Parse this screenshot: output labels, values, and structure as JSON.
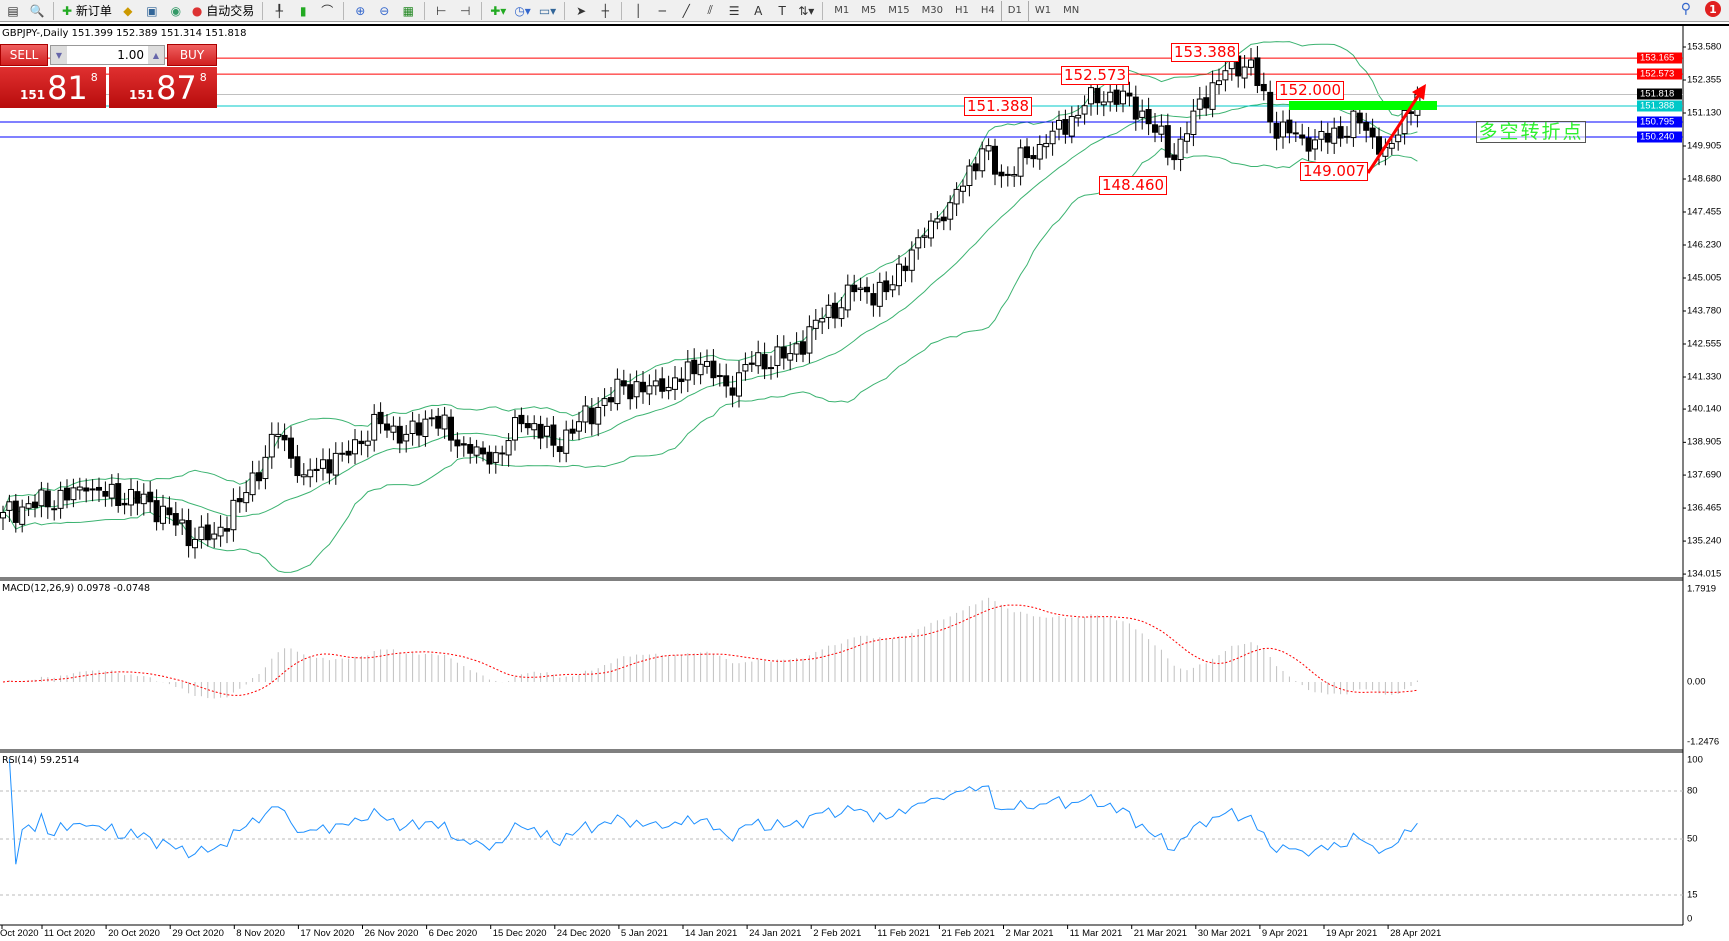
{
  "toolbar": {
    "new_order_label": "新订单",
    "auto_trading_label": "自动交易",
    "icons": [
      "new-chart-icon",
      "profiles-icon",
      "new-order-icon",
      "metaeditor-icon",
      "market-icon",
      "signals-icon",
      "auto-trading-icon",
      "bar-chart-icon",
      "candlestick-icon",
      "line-chart-icon",
      "zoom-in-icon",
      "zoom-out-icon",
      "tile-windows-icon",
      "auto-scroll-icon",
      "chart-shift-icon",
      "indicators-icon",
      "periods-icon",
      "templates-icon",
      "cursor-icon",
      "crosshair-icon",
      "vertical-line-icon",
      "horizontal-line-icon",
      "trendline-icon",
      "equidistant-channel-icon",
      "fibonacci-icon",
      "text-icon",
      "text-label-icon",
      "arrows-icon",
      "search-icon",
      "notifications-icon"
    ],
    "timeframes": [
      "M1",
      "M5",
      "M15",
      "M30",
      "H1",
      "H4",
      "D1",
      "W1",
      "MN"
    ],
    "active_timeframe": "D1",
    "notification_count": "1"
  },
  "chart": {
    "title": "GBPJPY-,Daily  151.399 152.389 151.314 151.818",
    "one_click": {
      "sell_label": "SELL",
      "buy_label": "BUY",
      "lot": "1.00",
      "sell_prefix": "151",
      "sell_big": "81",
      "sell_sup": "8",
      "buy_prefix": "151",
      "buy_big": "87",
      "buy_sup": "8"
    },
    "price_axis_ticks": [
      "153.580",
      "152.355",
      "151.130",
      "149.905",
      "148.680",
      "147.455",
      "146.230",
      "145.005",
      "143.780",
      "142.555",
      "141.330",
      "140.140",
      "138.905",
      "137.690",
      "136.465",
      "135.240",
      "134.015"
    ],
    "hlines": [
      {
        "price": "153.165",
        "color": "#ff0000"
      },
      {
        "price": "152.573",
        "color": "#ff0000"
      },
      {
        "price": "151.818",
        "color": "#000000",
        "line_color": "#c0c0c0"
      },
      {
        "price": "151.388",
        "color": "#00c8c8"
      },
      {
        "price": "150.795",
        "color": "#0000ff"
      },
      {
        "price": "150.240",
        "color": "#0000ff"
      }
    ],
    "price_labels": [
      "153.388",
      "152.573",
      "151.388",
      "152.000",
      "148.460",
      "149.007"
    ],
    "annotation": "多空转折点",
    "green_zone_color": "#00ff00",
    "arrow_color": "#ff0000",
    "band_color": "#3cb371",
    "macd": {
      "label": "MACD(12,26,9) 0.0978 -0.0748",
      "max": "1.7919",
      "zero": "0.00",
      "min": "-1.2476"
    },
    "rsi": {
      "label": "RSI(14) 59.2514",
      "levels": [
        "100",
        "80",
        "50",
        "15",
        "0"
      ],
      "line_color": "#1e90ff"
    },
    "dates": [
      "Oct 2020",
      "11 Oct 2020",
      "20 Oct 2020",
      "29 Oct 2020",
      "8 Nov 2020",
      "17 Nov 2020",
      "26 Nov 2020",
      "6 Dec 2020",
      "15 Dec 2020",
      "24 Dec 2020",
      "5 Jan 2021",
      "14 Jan 2021",
      "24 Jan 2021",
      "2 Feb 2021",
      "11 Feb 2021",
      "21 Feb 2021",
      "2 Mar 2021",
      "11 Mar 2021",
      "21 Mar 2021",
      "30 Mar 2021",
      "9 Apr 2021",
      "19 Apr 2021",
      "28 Apr 2021"
    ]
  },
  "chart_data": {
    "type": "candlestick",
    "symbol": "GBPJPY-",
    "timeframe": "Daily",
    "ylim": [
      134.015,
      153.58
    ],
    "close_keypoints": [
      [
        0,
        136.3
      ],
      [
        13,
        137.1
      ],
      [
        23,
        136.7
      ],
      [
        30,
        135.3
      ],
      [
        33,
        135.5
      ],
      [
        37,
        136.7
      ],
      [
        43,
        139.2
      ],
      [
        47,
        137.7
      ],
      [
        53,
        138.5
      ],
      [
        59,
        139.6
      ],
      [
        63,
        139.2
      ],
      [
        67,
        139.8
      ],
      [
        73,
        138.5
      ],
      [
        76,
        138.1
      ],
      [
        81,
        139.6
      ],
      [
        83,
        139.6
      ],
      [
        86,
        138.8
      ],
      [
        93,
        140.2
      ],
      [
        97,
        141.0
      ],
      [
        103,
        140.8
      ],
      [
        109,
        141.8
      ],
      [
        113,
        141.0
      ],
      [
        117,
        141.8
      ],
      [
        123,
        142.2
      ],
      [
        128,
        143.5
      ],
      [
        133,
        144.5
      ],
      [
        138,
        144.5
      ],
      [
        143,
        146.5
      ],
      [
        148,
        147.8
      ],
      [
        153,
        149.8
      ],
      [
        156,
        148.8
      ],
      [
        163,
        150.0
      ],
      [
        169,
        151.4
      ],
      [
        173,
        151.9
      ],
      [
        178,
        151.2
      ],
      [
        183,
        149.4
      ],
      [
        186,
        151.2
      ],
      [
        191,
        152.7
      ],
      [
        195,
        153.1
      ],
      [
        198,
        150.8
      ],
      [
        203,
        150.2
      ],
      [
        209,
        150.2
      ],
      [
        211,
        151.2
      ],
      [
        215,
        149.6
      ],
      [
        217,
        150.0
      ],
      [
        221,
        151.818
      ]
    ]
  }
}
